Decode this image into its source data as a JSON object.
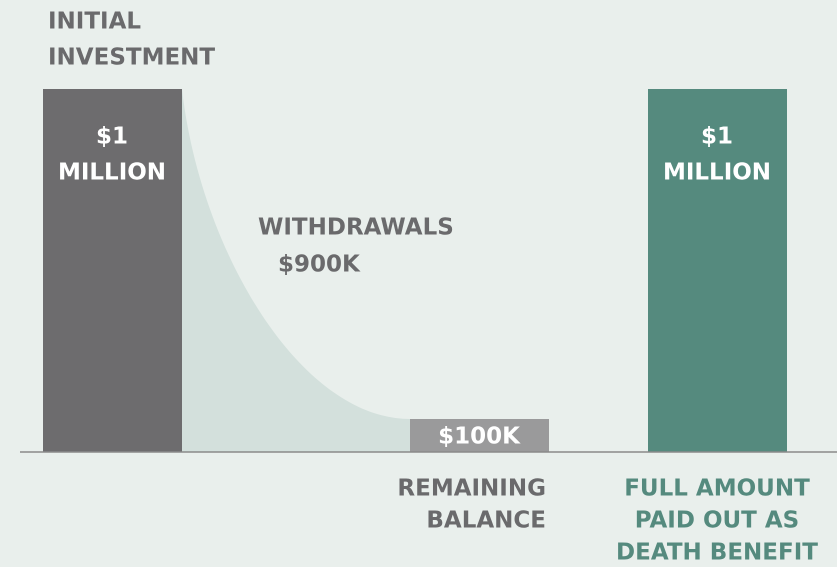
{
  "left_label": [
    "INITIAL",
    "INVESTMENT"
  ],
  "left_bar_label": [
    "$1",
    "MILLION"
  ],
  "withdrawals_label": [
    "WITHDRAWALS",
    "$900K"
  ],
  "middle_bar_label": "$100K",
  "middle_caption": [
    "REMAINING",
    "BALANCE"
  ],
  "right_bar_label": [
    "$1",
    "MILLION"
  ],
  "right_caption": [
    "FULL AMOUNT",
    "PAID OUT AS",
    "DEATH BENEFIT"
  ]
}
